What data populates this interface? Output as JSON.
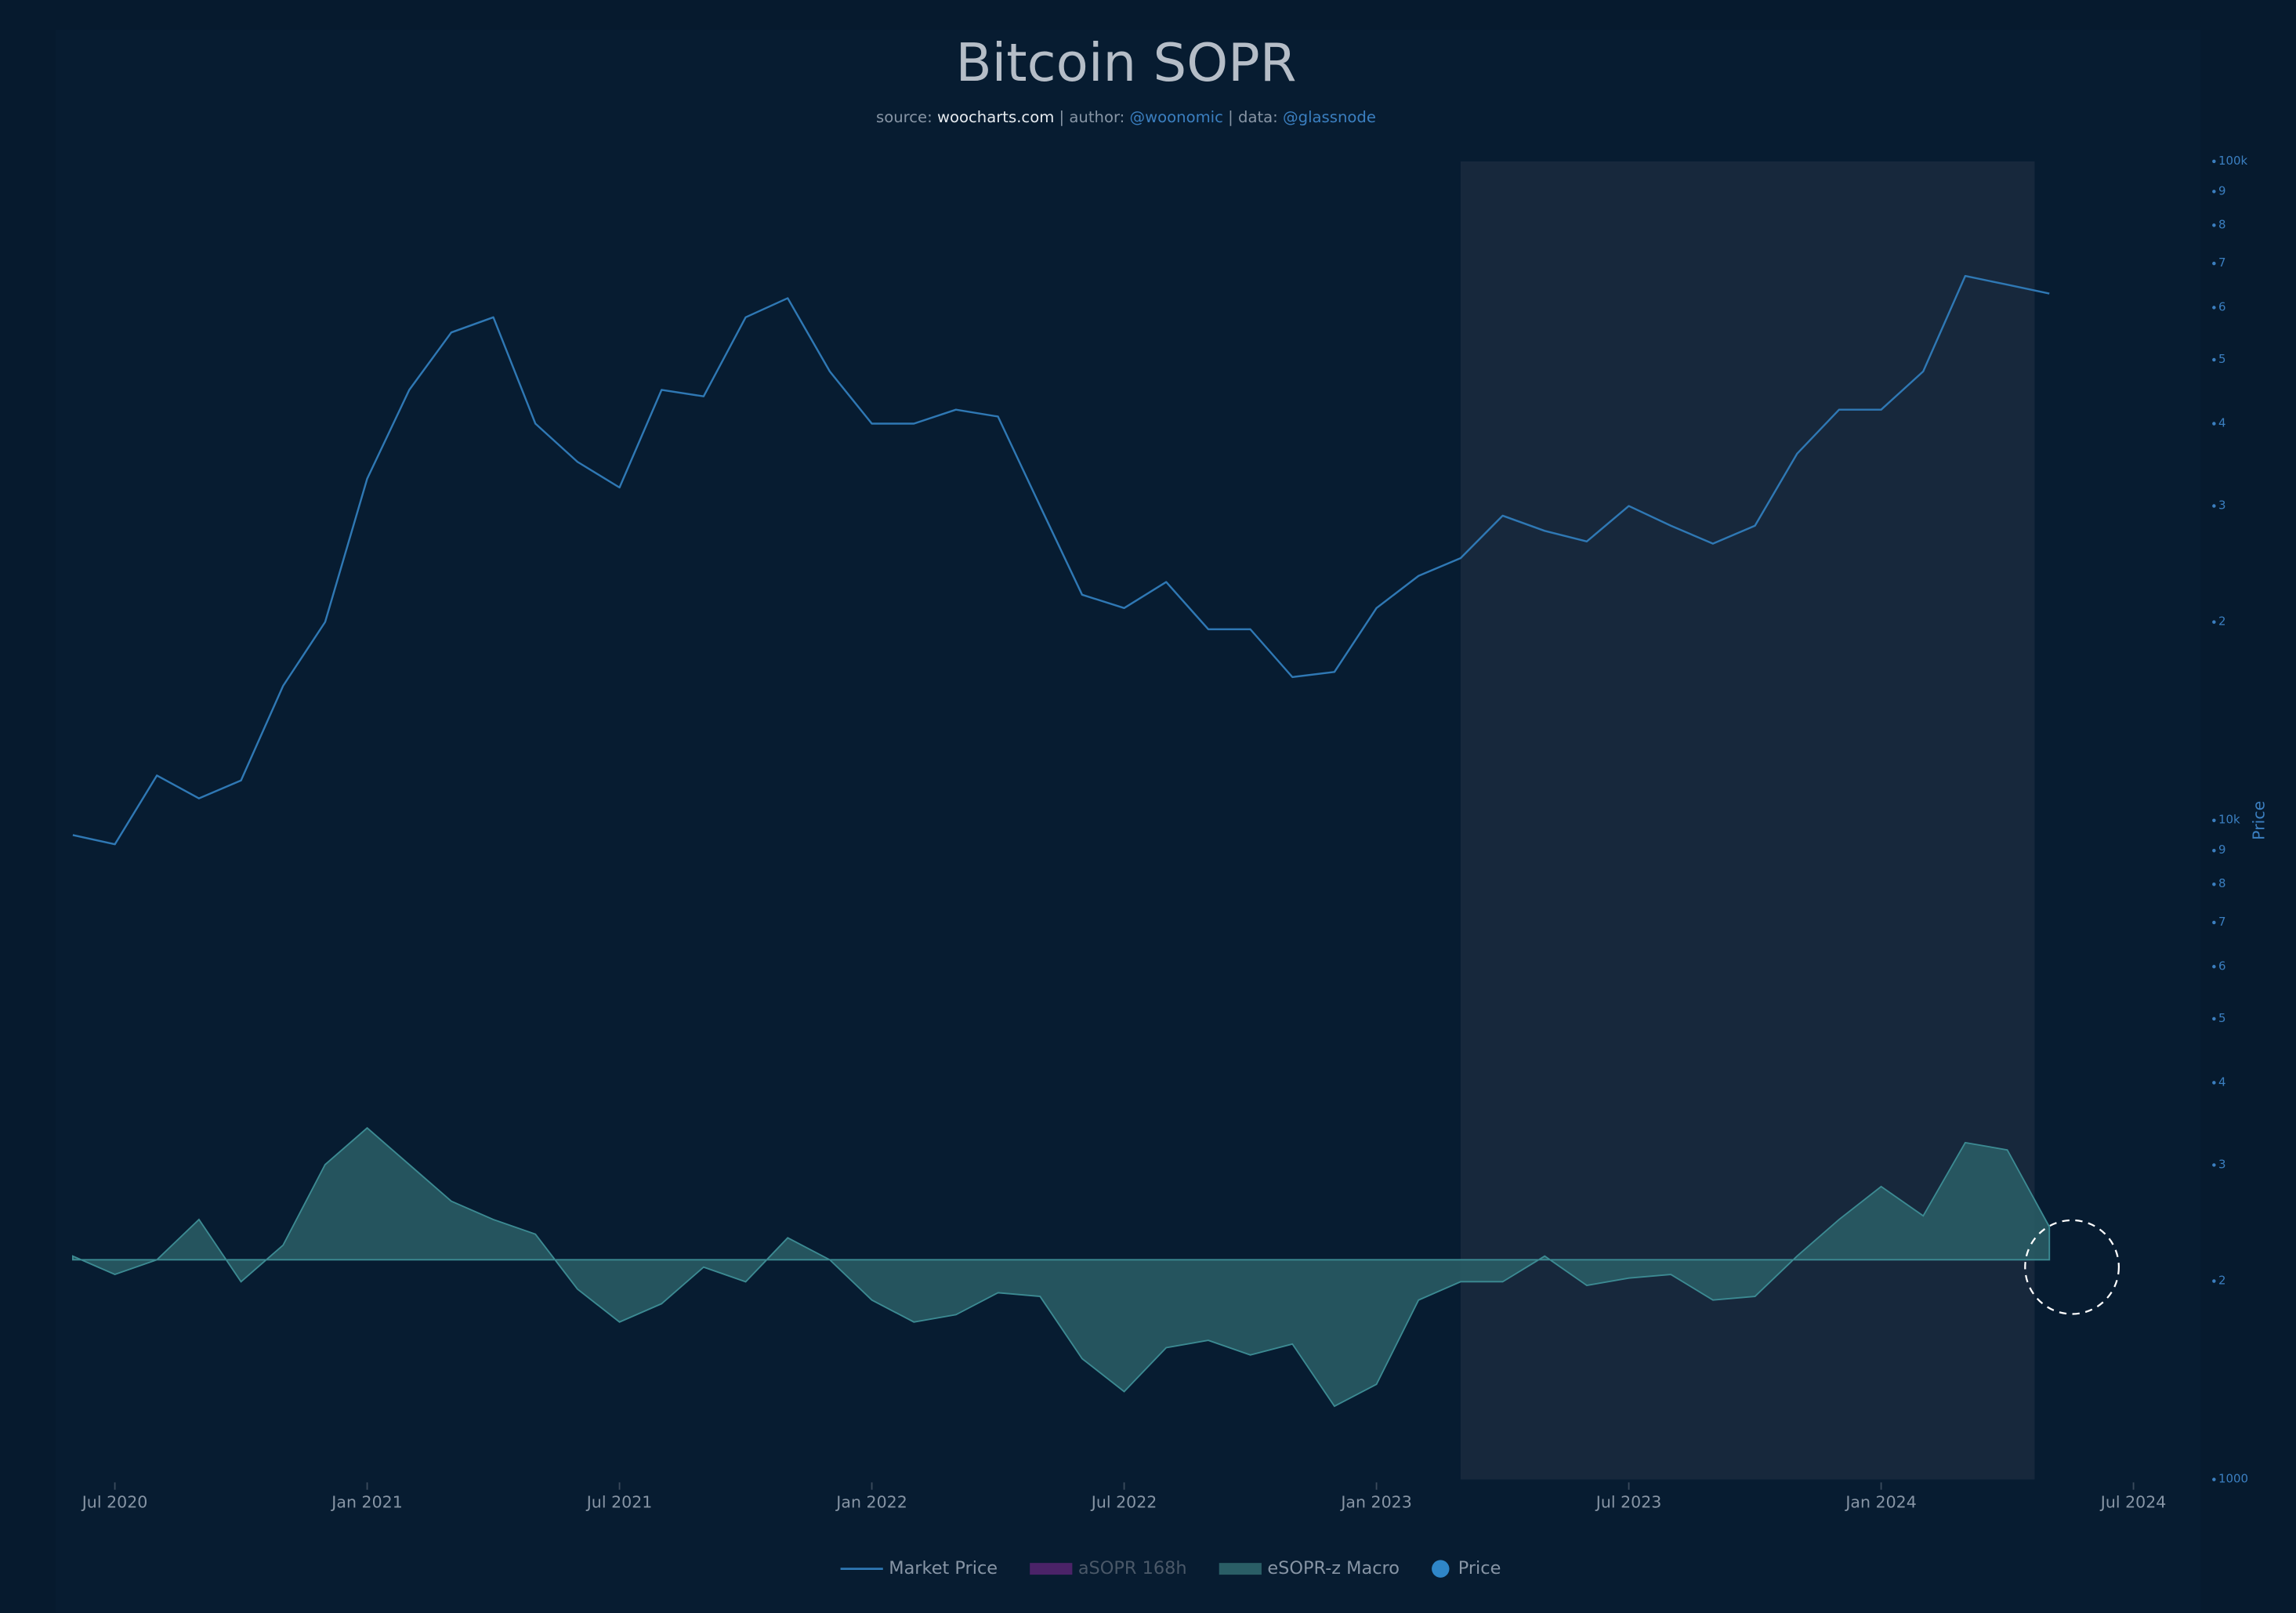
{
  "chart_data": {
    "type": "line-area",
    "title": "Bitcoin SOPR",
    "subtitle": [
      "source: ",
      "woocharts.com",
      " | author: ",
      "@woonomic",
      " | data: ",
      "@glassnode"
    ],
    "y_axis_label": "Price",
    "x": [
      "2020-06",
      "2020-07",
      "2020-08",
      "2020-09",
      "2020-10",
      "2020-11",
      "2020-12",
      "2021-01",
      "2021-02",
      "2021-03",
      "2021-04",
      "2021-05",
      "2021-06",
      "2021-07",
      "2021-08",
      "2021-09",
      "2021-10",
      "2021-11",
      "2021-12",
      "2022-01",
      "2022-02",
      "2022-03",
      "2022-04",
      "2022-05",
      "2022-06",
      "2022-07",
      "2022-08",
      "2022-09",
      "2022-10",
      "2022-11",
      "2022-12",
      "2023-01",
      "2023-02",
      "2023-03",
      "2023-04",
      "2023-05",
      "2023-06",
      "2023-07",
      "2023-08",
      "2023-09",
      "2023-10",
      "2023-11",
      "2023-12",
      "2024-01",
      "2024-02",
      "2024-03",
      "2024-04",
      "2024-05"
    ],
    "xlim": [
      "2020-05",
      "2024-07"
    ],
    "xticks": [
      {
        "value": "2020-07",
        "label": "Jul 2020"
      },
      {
        "value": "2021-01",
        "label": "Jan 2021"
      },
      {
        "value": "2021-07",
        "label": "Jul 2021"
      },
      {
        "value": "2022-01",
        "label": "Jan 2022"
      },
      {
        "value": "2022-07",
        "label": "Jul 2022"
      },
      {
        "value": "2023-01",
        "label": "Jan 2023"
      },
      {
        "value": "2023-07",
        "label": "Jul 2023"
      },
      {
        "value": "2024-01",
        "label": "Jan 2024"
      },
      {
        "value": "2024-07",
        "label": "Jul 2024"
      }
    ],
    "ylim": [
      1000,
      100000
    ],
    "log_scale": true,
    "yticks": [
      1000,
      {
        "value": 2000,
        "label": "2"
      },
      {
        "value": 3000,
        "label": "3"
      },
      {
        "value": 4000,
        "label": "4"
      },
      {
        "value": 5000,
        "label": "5"
      },
      {
        "value": 6000,
        "label": "6"
      },
      {
        "value": 7000,
        "label": "7"
      },
      {
        "value": 8000,
        "label": "8"
      },
      {
        "value": 9000,
        "label": "9"
      },
      {
        "value": 10000,
        "label": "10k"
      },
      {
        "value": 20000,
        "label": "2"
      },
      {
        "value": 30000,
        "label": "3"
      },
      {
        "value": 40000,
        "label": "4"
      },
      {
        "value": 50000,
        "label": "5"
      },
      {
        "value": 60000,
        "label": "6"
      },
      {
        "value": 70000,
        "label": "7"
      },
      {
        "value": 80000,
        "label": "8"
      },
      {
        "value": 90000,
        "label": "9"
      },
      {
        "value": 100000,
        "label": "100k"
      }
    ],
    "y2lim": [
      -3,
      15
    ],
    "series": [
      {
        "name": "Market Price",
        "kind": "line",
        "color": "#2f78b4",
        "values": [
          9500,
          9200,
          11700,
          10800,
          11500,
          16000,
          20000,
          33000,
          45000,
          55000,
          58000,
          40000,
          35000,
          32000,
          45000,
          44000,
          58000,
          62000,
          48000,
          40000,
          40000,
          42000,
          41000,
          30000,
          22000,
          21000,
          23000,
          19500,
          19500,
          16500,
          16800,
          21000,
          23500,
          25000,
          29000,
          27500,
          26500,
          30000,
          28000,
          26300,
          28000,
          36000,
          42000,
          42000,
          48000,
          67000,
          65000,
          63000
        ]
      },
      {
        "name": "eSOPR-z Macro",
        "kind": "area",
        "axis": "y2",
        "color": "#2a5e66",
        "values": [
          0.05,
          -0.2,
          0.0,
          0.55,
          -0.3,
          0.2,
          1.3,
          1.8,
          1.3,
          0.8,
          0.55,
          0.35,
          -0.4,
          -0.85,
          -0.6,
          -0.1,
          -0.3,
          0.3,
          0.0,
          -0.55,
          -0.85,
          -0.75,
          -0.45,
          -0.5,
          -1.35,
          -1.8,
          -1.2,
          -1.1,
          -1.3,
          -1.15,
          -2.0,
          -1.7,
          -0.55,
          -0.3,
          -0.3,
          0.05,
          -0.35,
          -0.25,
          -0.2,
          -0.55,
          -0.5,
          0.05,
          0.55,
          1.0,
          0.6,
          1.6,
          1.5,
          0.45
        ]
      }
    ],
    "legend_extra": [
      {
        "name": "aSOPR 168h",
        "color": "#4b2368",
        "hidden": true,
        "after": 0
      },
      {
        "name": "Price",
        "color": "#2f86c8",
        "marker": "circle"
      }
    ],
    "highlight": {
      "from": "2023-03",
      "to": "2024-04",
      "color": "#1a2a3e"
    }
  }
}
